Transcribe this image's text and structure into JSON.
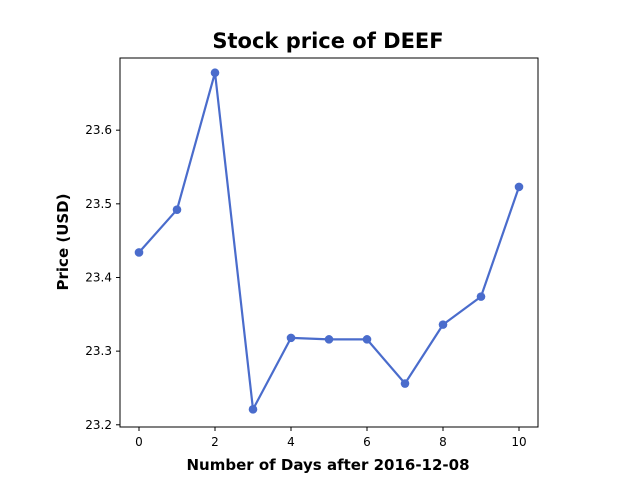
{
  "chart_data": {
    "type": "line",
    "title": "Stock price of DEEF",
    "xlabel": "Number of Days after 2016-12-08",
    "ylabel": "Price (USD)",
    "xlim": [
      -0.5,
      10.5
    ],
    "ylim": [
      23.197,
      23.698
    ],
    "x_ticks": [
      0,
      2,
      4,
      6,
      8,
      10
    ],
    "y_ticks": [
      23.2,
      23.3,
      23.4,
      23.5,
      23.6
    ],
    "y_tick_labels": [
      "23.2",
      "23.3",
      "23.4",
      "23.5",
      "23.6"
    ],
    "grid": false,
    "series": [
      {
        "color": "#4a6ccc",
        "x": [
          0,
          1,
          2,
          3,
          4,
          5,
          6,
          7,
          8,
          9,
          10
        ],
        "values": [
          23.434,
          23.492,
          23.678,
          23.221,
          23.318,
          23.316,
          23.316,
          23.256,
          23.336,
          23.374,
          23.523
        ]
      }
    ]
  }
}
